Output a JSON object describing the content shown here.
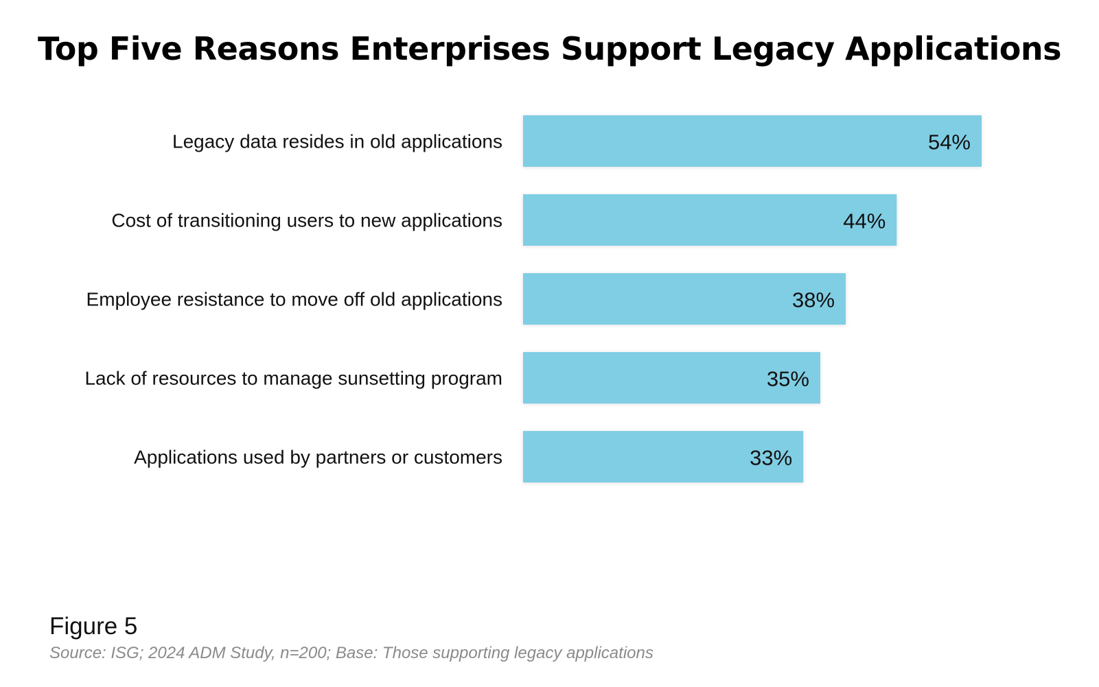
{
  "chart_data": {
    "type": "bar",
    "orientation": "horizontal",
    "title": "Top Five Reasons Enterprises Support Legacy Applications",
    "categories": [
      "Legacy data resides in old applications",
      "Cost of transitioning users to new applications",
      "Employee resistance to move off old applications",
      "Lack of resources to manage sunsetting program",
      "Applications used by partners or customers"
    ],
    "values": [
      54,
      44,
      38,
      35,
      33
    ],
    "data_labels": [
      "54%",
      "44%",
      "38%",
      "35%",
      "33%"
    ],
    "unit": "%",
    "xlim": [
      0,
      54
    ],
    "grid": false,
    "axes_visible": false,
    "bar_color": "#80cee4"
  },
  "figure_label": "Figure 5",
  "source": "Source: ISG; 2024 ADM Study, n=200; Base: Those supporting legacy applications"
}
